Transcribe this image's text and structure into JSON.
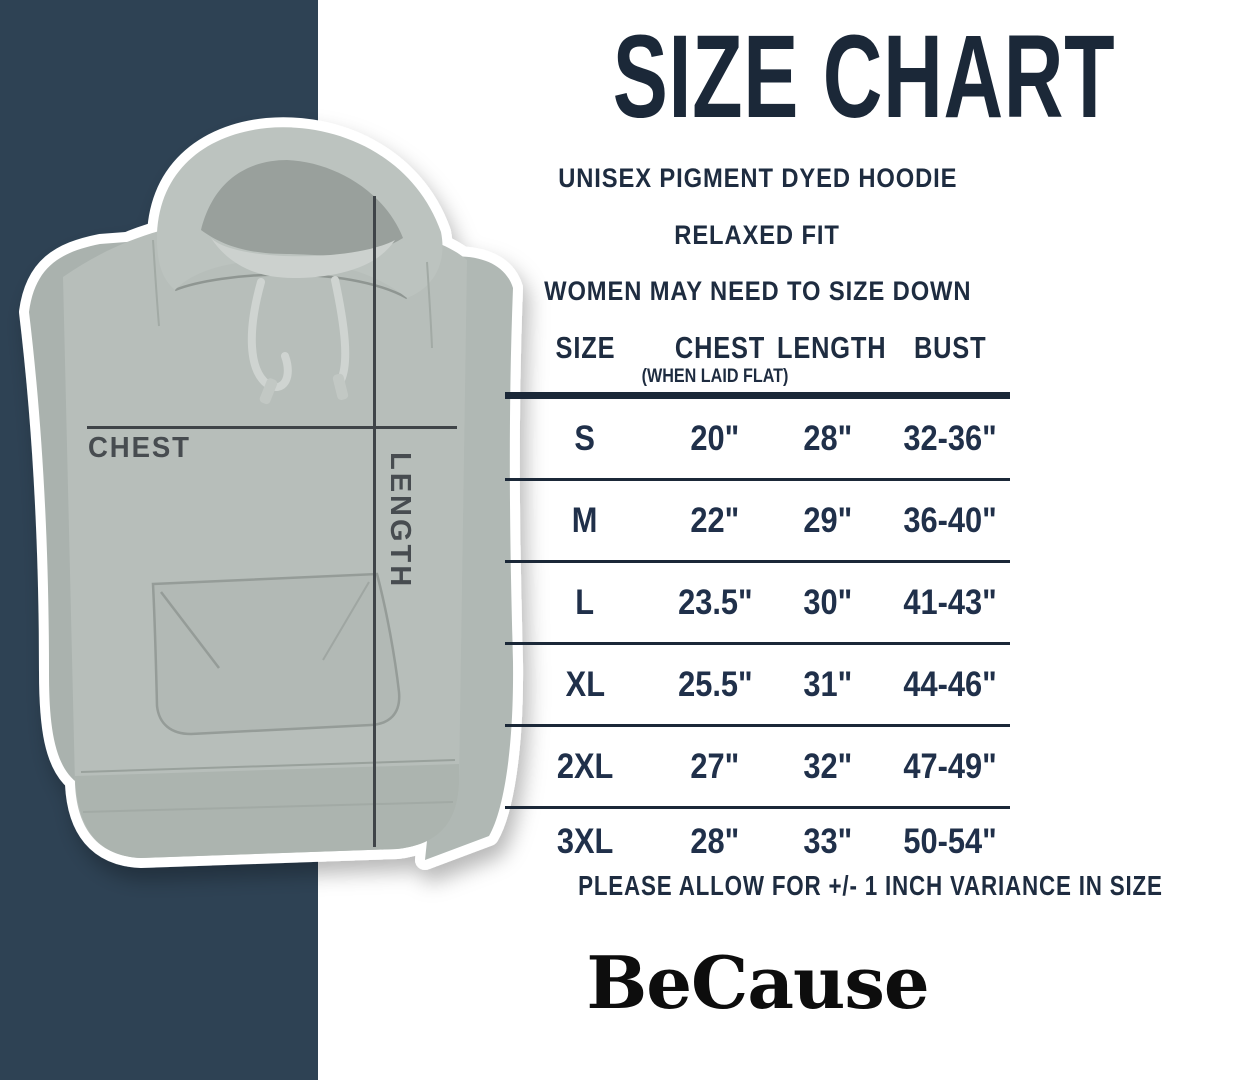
{
  "colors": {
    "navy_panel": "#2e4254",
    "heading_navy": "#1b2838",
    "table_rule": "#1b2838",
    "measure_line_gray": "#3f4448",
    "hoodie_fabric": "#b7beba",
    "logo_black": "#0d0d0d"
  },
  "header": {
    "title": "SIZE CHART",
    "subtitles": [
      "UNISEX PIGMENT DYED HOODIE",
      "RELAXED FIT",
      "WOMEN MAY NEED TO SIZE DOWN"
    ]
  },
  "photo": {
    "description": "gray pigment dyed hoodie flat lay with white sticker outline",
    "chest_label": "CHEST",
    "length_label": "LENGTH"
  },
  "size_table": {
    "columns": [
      "SIZE",
      "CHEST",
      "LENGTH",
      "BUST"
    ],
    "chest_subnote": "(WHEN LAID FLAT)",
    "rows": [
      {
        "size": "S",
        "chest": "20\"",
        "length": "28\"",
        "bust": "32-36\""
      },
      {
        "size": "M",
        "chest": "22\"",
        "length": "29\"",
        "bust": "36-40\""
      },
      {
        "size": "L",
        "chest": "23.5\"",
        "length": "30\"",
        "bust": "41-43\""
      },
      {
        "size": "XL",
        "chest": "25.5\"",
        "length": "31\"",
        "bust": "44-46\""
      },
      {
        "size": "2XL",
        "chest": "27\"",
        "length": "32\"",
        "bust": "47-49\""
      },
      {
        "size": "3XL",
        "chest": "28\"",
        "length": "33\"",
        "bust": "50-54\""
      }
    ]
  },
  "footnote": "PLEASE ALLOW FOR +/- 1 INCH VARIANCE IN SIZE",
  "brand": {
    "logo_text": "BeCause"
  },
  "chart_data": {
    "type": "table",
    "title": "SIZE CHART",
    "subtitle": "UNISEX PIGMENT DYED HOODIE - RELAXED FIT - WOMEN MAY NEED TO SIZE DOWN",
    "columns": [
      "SIZE",
      "CHEST (WHEN LAID FLAT)",
      "LENGTH",
      "BUST"
    ],
    "rows": [
      [
        "S",
        "20\"",
        "28\"",
        "32-36\""
      ],
      [
        "M",
        "22\"",
        "29\"",
        "36-40\""
      ],
      [
        "L",
        "23.5\"",
        "30\"",
        "41-43\""
      ],
      [
        "XL",
        "25.5\"",
        "31\"",
        "44-46\""
      ],
      [
        "2XL",
        "27\"",
        "32\"",
        "47-49\""
      ],
      [
        "3XL",
        "28\"",
        "33\"",
        "50-54\""
      ]
    ],
    "units": "inches",
    "notes": [
      "PLEASE ALLOW FOR +/- 1 INCH VARIANCE IN SIZE"
    ]
  }
}
